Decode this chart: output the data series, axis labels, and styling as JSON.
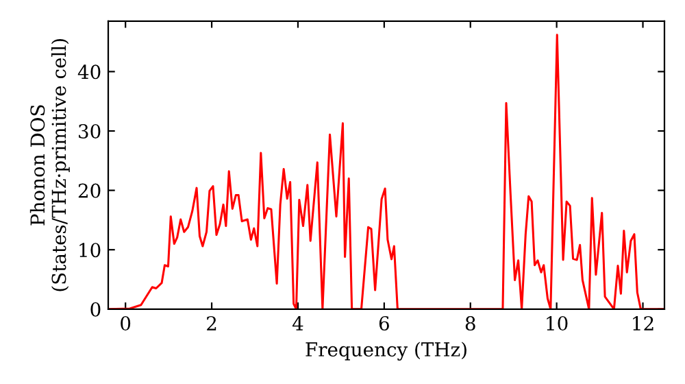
{
  "chart_data": {
    "type": "line",
    "xlabel": "Frequency (THz)",
    "ylabel": "Phonon DOS\n(States/THz·primitive cell)",
    "xlim": [
      -0.4,
      12.5
    ],
    "ylim": [
      0,
      48.5
    ],
    "xticks": [
      0,
      2,
      4,
      6,
      8,
      10,
      12
    ],
    "yticks": [
      0,
      10,
      20,
      30,
      40
    ],
    "grid": false,
    "line_style": "solid",
    "marker": "none",
    "series": [
      {
        "color": "#ff0000",
        "x": [
          -0.4,
          0.1,
          0.36,
          0.62,
          0.71,
          0.84,
          0.91,
          0.99,
          1.05,
          1.13,
          1.2,
          1.28,
          1.36,
          1.45,
          1.55,
          1.65,
          1.72,
          1.79,
          1.88,
          1.95,
          2.03,
          2.11,
          2.19,
          2.27,
          2.33,
          2.4,
          2.48,
          2.56,
          2.62,
          2.7,
          2.83,
          2.91,
          2.98,
          3.06,
          3.14,
          3.22,
          3.3,
          3.38,
          3.51,
          3.59,
          3.67,
          3.75,
          3.82,
          3.9,
          3.96,
          4.03,
          4.12,
          4.22,
          4.29,
          4.45,
          4.57,
          4.74,
          4.89,
          5.04,
          5.09,
          5.18,
          5.25,
          5.47,
          5.63,
          5.7,
          5.79,
          5.94,
          6.02,
          6.08,
          6.17,
          6.23,
          6.31,
          8.75,
          8.83,
          8.93,
          9.03,
          9.11,
          9.19,
          9.28,
          9.35,
          9.42,
          9.49,
          9.56,
          9.64,
          9.7,
          9.79,
          9.86,
          10.01,
          10.15,
          10.23,
          10.31,
          10.38,
          10.47,
          10.54,
          10.6,
          10.75,
          10.82,
          10.91,
          11.05,
          11.12,
          11.33,
          11.42,
          11.49,
          11.56,
          11.63,
          11.72,
          11.8,
          11.87,
          11.95,
          12.5
        ],
        "values": [
          0,
          0.1,
          0.7,
          3.7,
          3.5,
          4.4,
          7.4,
          7.2,
          15.6,
          11,
          12.1,
          15.1,
          13,
          13.8,
          16.5,
          20.4,
          12.3,
          10.6,
          13,
          19.9,
          20.7,
          12.5,
          14.3,
          17.6,
          14,
          23.2,
          16.9,
          19.2,
          19.2,
          14.8,
          15.1,
          11.7,
          13.6,
          10.6,
          26.3,
          15.3,
          17,
          16.8,
          4.3,
          17.6,
          23.6,
          18.6,
          21.4,
          0.9,
          0,
          18.4,
          14,
          20.9,
          11.5,
          24.7,
          0,
          29.4,
          15.6,
          31.3,
          8.8,
          22,
          0,
          0,
          13.8,
          13.5,
          3.2,
          18.5,
          20.3,
          11.7,
          8.4,
          10.6,
          0,
          0,
          34.7,
          19.4,
          4.9,
          8.2,
          0,
          12.6,
          19,
          18.1,
          7.4,
          8.2,
          6.2,
          7.4,
          1.8,
          0,
          46.2,
          8.3,
          18.1,
          17.4,
          8.5,
          8.3,
          10.8,
          4.9,
          0,
          18.7,
          5.8,
          16.2,
          2.1,
          0,
          7.3,
          2.6,
          13.2,
          6.2,
          11.5,
          12.6,
          2.8,
          0,
          0
        ]
      }
    ]
  }
}
